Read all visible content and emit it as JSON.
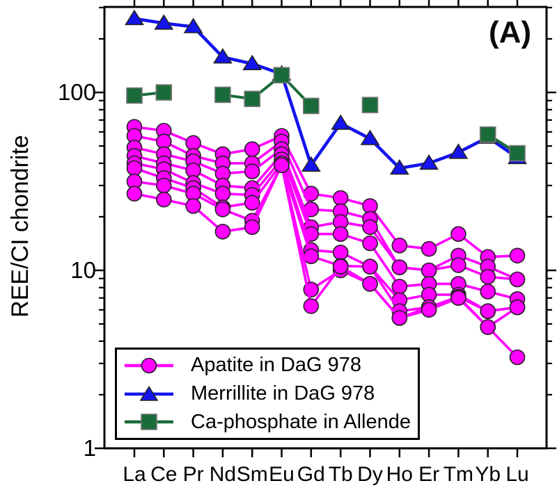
{
  "figure_label": "(A)",
  "axes": {
    "ylabel": "REE/CI chondrite",
    "y_tick_labels": [
      "1",
      "10",
      "100"
    ]
  },
  "legend": {
    "items": [
      {
        "label": "Apatite in DaG 978",
        "marker": "circle",
        "color": "#FF00FF"
      },
      {
        "label": "Merrillite in DaG 978",
        "marker": "triangle",
        "color": "#1414EE"
      },
      {
        "label": "Ca-phosphate in Allende",
        "marker": "square",
        "color": "#1A6B3A"
      }
    ]
  },
  "chart_data": {
    "type": "line",
    "title": "",
    "xlabel": "",
    "ylabel": "REE/CI chondrite",
    "log_y": true,
    "ylim": [
      1,
      302
    ],
    "y_major_ticks": [
      1,
      10,
      100
    ],
    "grid": false,
    "legend_position": "lower-left",
    "categories": [
      "La",
      "Ce",
      "Pr",
      "Nd",
      "Sm",
      "Eu",
      "Gd",
      "Tb",
      "Dy",
      "Ho",
      "Er",
      "Tm",
      "Yb",
      "Lu"
    ],
    "series": [
      {
        "id": "apatite-1",
        "group": "Apatite in DaG 978",
        "marker": "circle",
        "color": "#FF00FF",
        "values": [
          64,
          61,
          52,
          45,
          48,
          57,
          27,
          25.5,
          23,
          13.8,
          13.2,
          16,
          11.9,
          12.1
        ]
      },
      {
        "id": "apatite-2",
        "group": "Apatite in DaG 978",
        "marker": "circle",
        "color": "#FF00FF",
        "values": [
          57,
          53,
          44,
          40,
          40,
          53,
          22,
          21.5,
          19.5,
          10.4,
          10,
          12.1,
          10.5,
          8.9
        ]
      },
      {
        "id": "apatite-3",
        "group": "Apatite in DaG 978",
        "marker": "circle",
        "color": "#FF00FF",
        "values": [
          49,
          45,
          41,
          35,
          36,
          48,
          17.5,
          18.7,
          17.5,
          10.4,
          10,
          10.7,
          9.2,
          8.9
        ]
      },
      {
        "id": "apatite-4",
        "group": "Apatite in DaG 978",
        "marker": "circle",
        "color": "#FF00FF",
        "values": [
          44,
          40,
          36.5,
          30,
          29,
          45,
          16,
          16,
          14.2,
          8.1,
          8.4,
          8.4,
          7.6,
          6.9
        ]
      },
      {
        "id": "apatite-5",
        "group": "Apatite in DaG 978",
        "marker": "circle",
        "color": "#FF00FF",
        "values": [
          40,
          37,
          31,
          27,
          26.5,
          42,
          13,
          12.6,
          10.5,
          6.8,
          7.3,
          7.3,
          5.9,
          6.2
        ]
      },
      {
        "id": "apatite-6",
        "group": "Apatite in DaG 978",
        "marker": "circle",
        "color": "#FF00FF",
        "values": [
          37.5,
          33,
          29,
          22.6,
          24,
          40,
          12,
          10.6,
          10.5,
          5.9,
          6.2,
          7.1,
          5.9,
          6.2
        ]
      },
      {
        "id": "apatite-7",
        "group": "Apatite in DaG 978",
        "marker": "circle",
        "color": "#FF00FF",
        "values": [
          31.6,
          30,
          27,
          22,
          19,
          39,
          7.8,
          10,
          8.4,
          5.4,
          6.2,
          7.1,
          4.8,
          6.2
        ]
      },
      {
        "id": "apatite-8",
        "group": "Apatite in DaG 978",
        "marker": "circle",
        "color": "#FF00FF",
        "values": [
          27,
          25,
          23,
          16.5,
          17.5,
          39,
          6.3,
          10.5,
          8.4,
          5.4,
          6,
          7,
          4.8,
          3.25
        ]
      },
      {
        "id": "merrillite",
        "group": "Merrillite in DaG 978",
        "marker": "triangle",
        "color": "#1414EE",
        "values": [
          260,
          245,
          234,
          158,
          145,
          127,
          39,
          67,
          55,
          37.5,
          40,
          46,
          56,
          43
        ]
      },
      {
        "id": "ca-phosphate-allende",
        "group": "Ca-phosphate in Allende",
        "marker": "square",
        "color": "#1A6B3A",
        "values": [
          96,
          100,
          null,
          97,
          92,
          125,
          84,
          null,
          85,
          null,
          null,
          null,
          58,
          45.5
        ]
      }
    ]
  }
}
